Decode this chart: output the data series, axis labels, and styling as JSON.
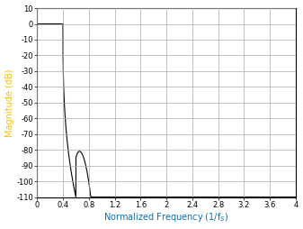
{
  "title": "",
  "xlabel": "Normalized Frequency (1/f_S)",
  "ylabel": "Magnitude (dB)",
  "xlim": [
    0,
    4
  ],
  "ylim": [
    -110,
    10
  ],
  "xticks": [
    0,
    0.4,
    0.8,
    1.2,
    1.6,
    2.0,
    2.4,
    2.8,
    3.2,
    3.6,
    4.0
  ],
  "yticks": [
    -110,
    -100,
    -90,
    -80,
    -70,
    -60,
    -50,
    -40,
    -30,
    -20,
    -10,
    0,
    10
  ],
  "xlabel_color": "#0070C0",
  "ylabel_color": "#FFC000",
  "line_color": "#000000",
  "grid_color": "#AAAAAA",
  "background_color": "#FFFFFF",
  "figsize": [
    3.37,
    2.54
  ],
  "dpi": 100
}
